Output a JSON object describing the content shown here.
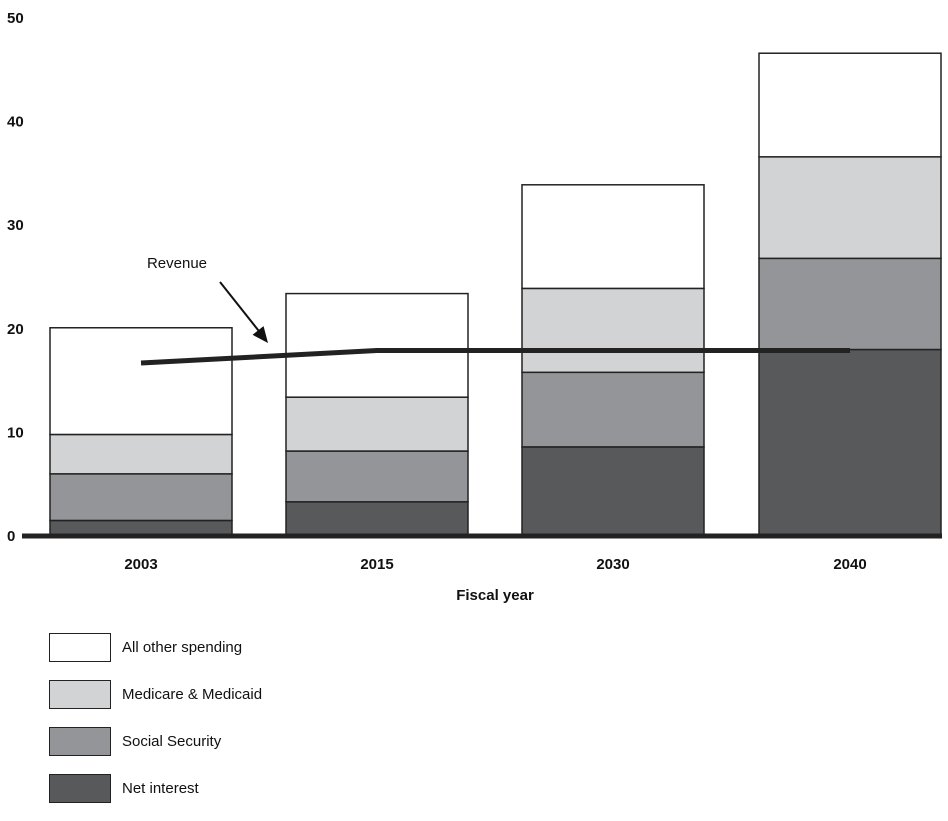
{
  "chart_data": {
    "type": "bar",
    "stacked": true,
    "title": "",
    "xlabel": "Fiscal year",
    "ylabel": "",
    "categories": [
      "2003",
      "2015",
      "2030",
      "2040"
    ],
    "ylim": [
      0,
      50
    ],
    "yticks": [
      0,
      10,
      20,
      30,
      40,
      50
    ],
    "grid": false,
    "legend_position": "bottom-left",
    "series": [
      {
        "name": "Net interest",
        "color": "#58595b",
        "values": [
          1.5,
          3.3,
          8.6,
          18.0
        ]
      },
      {
        "name": "Social Security",
        "color": "#939598",
        "values": [
          4.5,
          4.9,
          7.2,
          8.8
        ]
      },
      {
        "name": "Medicare & Medicaid",
        "color": "#d1d3d4",
        "values": [
          3.8,
          5.2,
          8.1,
          9.8
        ]
      },
      {
        "name": "All other spending",
        "color": "#ffffff",
        "values": [
          10.3,
          10.0,
          10.0,
          10.0
        ]
      }
    ],
    "revenue_line": {
      "label": "Revenue",
      "color": "#222222",
      "points": [
        {
          "x": "2003",
          "y": 16.7
        },
        {
          "x": "2015",
          "y": 17.9
        },
        {
          "x": "2040",
          "y": 17.9
        }
      ]
    }
  },
  "legend": [
    {
      "label": "All other spending",
      "color": "#ffffff"
    },
    {
      "label": "Medicare & Medicaid",
      "color": "#d1d3d4"
    },
    {
      "label": "Social Security",
      "color": "#939598"
    },
    {
      "label": "Net interest",
      "color": "#58595b"
    }
  ]
}
